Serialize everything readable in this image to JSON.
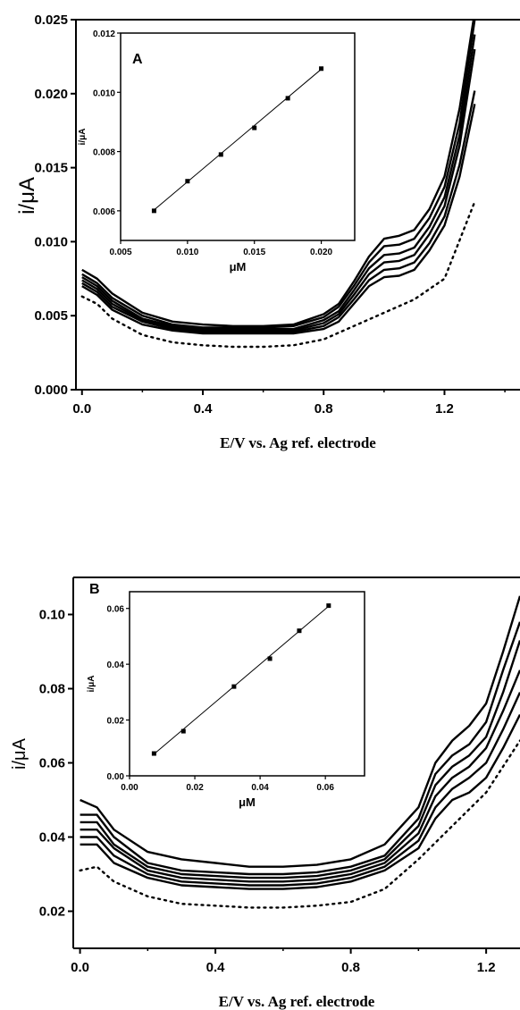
{
  "chart_data": [
    {
      "type": "line",
      "panel": "A",
      "xlabel": "E/V vs. Ag ref. electrode",
      "ylabel": "i/μA",
      "xlim": [
        -0.02,
        1.45
      ],
      "ylim": [
        0.0,
        0.025
      ],
      "xticks": [
        "0.0",
        "0.4",
        "0.8",
        "1.2"
      ],
      "yticks": [
        "0.000",
        "0.005",
        "0.010",
        "0.015",
        "0.020",
        "0.025"
      ],
      "series": [
        {
          "style": "dotted",
          "x": [
            0.0,
            0.05,
            0.1,
            0.2,
            0.3,
            0.4,
            0.5,
            0.6,
            0.7,
            0.8,
            0.9,
            1.0,
            1.1,
            1.2,
            1.3
          ],
          "y": [
            0.0063,
            0.0058,
            0.0048,
            0.0037,
            0.0032,
            0.003,
            0.0029,
            0.0029,
            0.003,
            0.0034,
            0.0043,
            0.0052,
            0.0061,
            0.0075,
            0.0127
          ]
        },
        {
          "style": "solid",
          "x": [
            0.0,
            0.05,
            0.1,
            0.2,
            0.3,
            0.4,
            0.5,
            0.6,
            0.7,
            0.8,
            0.85,
            0.9,
            0.95,
            1.0,
            1.05,
            1.1,
            1.15,
            1.2,
            1.25,
            1.3
          ],
          "y": [
            0.007,
            0.0064,
            0.0054,
            0.0044,
            0.004,
            0.0038,
            0.0038,
            0.0038,
            0.0038,
            0.0041,
            0.0046,
            0.0058,
            0.007,
            0.0076,
            0.0077,
            0.0081,
            0.0094,
            0.0111,
            0.0144,
            0.0193
          ]
        },
        {
          "style": "solid",
          "x": [
            0.0,
            0.05,
            0.1,
            0.2,
            0.3,
            0.4,
            0.5,
            0.6,
            0.7,
            0.8,
            0.85,
            0.9,
            0.95,
            1.0,
            1.05,
            1.1,
            1.15,
            1.2,
            1.25,
            1.3
          ],
          "y": [
            0.0072,
            0.0066,
            0.0056,
            0.0046,
            0.0041,
            0.0039,
            0.0039,
            0.0039,
            0.0039,
            0.0043,
            0.0049,
            0.0061,
            0.0074,
            0.0081,
            0.0082,
            0.0086,
            0.0099,
            0.0117,
            0.0152,
            0.0202
          ]
        },
        {
          "style": "solid",
          "x": [
            0.0,
            0.05,
            0.1,
            0.2,
            0.3,
            0.4,
            0.5,
            0.6,
            0.7,
            0.8,
            0.85,
            0.9,
            0.95,
            1.0,
            1.05,
            1.1,
            1.15,
            1.2,
            1.25,
            1.3
          ],
          "y": [
            0.0074,
            0.0068,
            0.0058,
            0.0047,
            0.0042,
            0.004,
            0.004,
            0.004,
            0.004,
            0.0045,
            0.0051,
            0.0064,
            0.0078,
            0.0086,
            0.0087,
            0.0091,
            0.0105,
            0.0124,
            0.0165,
            0.023
          ]
        },
        {
          "style": "solid",
          "x": [
            0.0,
            0.05,
            0.1,
            0.2,
            0.3,
            0.4,
            0.5,
            0.6,
            0.7,
            0.8,
            0.85,
            0.9,
            0.95,
            1.0,
            1.05,
            1.1,
            1.15,
            1.2,
            1.25,
            1.3
          ],
          "y": [
            0.0076,
            0.007,
            0.006,
            0.0048,
            0.0043,
            0.0041,
            0.0041,
            0.0041,
            0.0041,
            0.0047,
            0.0053,
            0.0067,
            0.0082,
            0.0091,
            0.0092,
            0.0096,
            0.011,
            0.013,
            0.0172,
            0.024
          ]
        },
        {
          "style": "solid",
          "x": [
            0.0,
            0.05,
            0.1,
            0.2,
            0.3,
            0.4,
            0.5,
            0.6,
            0.7,
            0.8,
            0.85,
            0.9,
            0.95,
            1.0,
            1.05,
            1.1,
            1.15,
            1.2,
            1.25,
            1.3
          ],
          "y": [
            0.0078,
            0.0072,
            0.0062,
            0.005,
            0.0044,
            0.0042,
            0.0042,
            0.0042,
            0.0043,
            0.0049,
            0.0056,
            0.007,
            0.0086,
            0.0097,
            0.0098,
            0.0102,
            0.0116,
            0.0137,
            0.018,
            0.025
          ]
        },
        {
          "style": "solid",
          "x": [
            0.0,
            0.05,
            0.1,
            0.2,
            0.3,
            0.4,
            0.5,
            0.6,
            0.7,
            0.8,
            0.85,
            0.9,
            0.95,
            1.0,
            1.05,
            1.1,
            1.15,
            1.2,
            1.25,
            1.3
          ],
          "y": [
            0.0081,
            0.0075,
            0.0065,
            0.0052,
            0.0046,
            0.0044,
            0.0043,
            0.0043,
            0.0044,
            0.0051,
            0.0058,
            0.0073,
            0.009,
            0.0102,
            0.0104,
            0.0108,
            0.0122,
            0.0144,
            0.019,
            0.0255
          ]
        }
      ],
      "inset": {
        "label": "A",
        "type": "scatter",
        "xlabel": "μM",
        "ylabel": "i/μA",
        "xlim": [
          0.005,
          0.0225
        ],
        "ylim": [
          0.005,
          0.012
        ],
        "xticks": [
          "0.005",
          "0.010",
          "0.015",
          "0.020"
        ],
        "yticks": [
          "0.006",
          "0.008",
          "0.010",
          "0.012"
        ],
        "points": {
          "x": [
            0.0075,
            0.01,
            0.0125,
            0.015,
            0.0175,
            0.02
          ],
          "y": [
            0.006,
            0.007,
            0.0079,
            0.0088,
            0.0098,
            0.0108
          ]
        },
        "fit": {
          "x": [
            0.0075,
            0.02
          ],
          "y": [
            0.00603,
            0.01078
          ]
        }
      }
    },
    {
      "type": "line",
      "panel": "B",
      "xlabel": "E/V vs. Ag ref. electrode",
      "ylabel": "i/μA",
      "xlim": [
        -0.02,
        1.3
      ],
      "ylim": [
        0.01,
        0.11
      ],
      "xticks": [
        "0.0",
        "0.4",
        "0.8",
        "1.2"
      ],
      "yticks": [
        "0.02",
        "0.04",
        "0.06",
        "0.08",
        "0.10"
      ],
      "series": [
        {
          "style": "dotted",
          "x": [
            0.0,
            0.05,
            0.1,
            0.2,
            0.3,
            0.4,
            0.5,
            0.6,
            0.7,
            0.8,
            0.9,
            1.0,
            1.1,
            1.2,
            1.3
          ],
          "y": [
            0.031,
            0.032,
            0.028,
            0.024,
            0.022,
            0.0215,
            0.021,
            0.021,
            0.0215,
            0.0225,
            0.026,
            0.034,
            0.043,
            0.052,
            0.066
          ]
        },
        {
          "style": "solid",
          "x": [
            0.0,
            0.05,
            0.1,
            0.2,
            0.3,
            0.4,
            0.5,
            0.6,
            0.7,
            0.8,
            0.9,
            1.0,
            1.05,
            1.1,
            1.15,
            1.2,
            1.25,
            1.3
          ],
          "y": [
            0.038,
            0.038,
            0.033,
            0.029,
            0.027,
            0.0265,
            0.026,
            0.026,
            0.0265,
            0.028,
            0.031,
            0.037,
            0.045,
            0.05,
            0.052,
            0.056,
            0.064,
            0.073
          ]
        },
        {
          "style": "solid",
          "x": [
            0.0,
            0.05,
            0.1,
            0.2,
            0.3,
            0.4,
            0.5,
            0.6,
            0.7,
            0.8,
            0.9,
            1.0,
            1.05,
            1.1,
            1.15,
            1.2,
            1.25,
            1.3
          ],
          "y": [
            0.04,
            0.04,
            0.035,
            0.03,
            0.028,
            0.0275,
            0.027,
            0.027,
            0.0275,
            0.029,
            0.032,
            0.039,
            0.048,
            0.053,
            0.056,
            0.06,
            0.069,
            0.079
          ]
        },
        {
          "style": "solid",
          "x": [
            0.0,
            0.05,
            0.1,
            0.2,
            0.3,
            0.4,
            0.5,
            0.6,
            0.7,
            0.8,
            0.9,
            1.0,
            1.05,
            1.1,
            1.15,
            1.2,
            1.25,
            1.3
          ],
          "y": [
            0.042,
            0.042,
            0.037,
            0.031,
            0.029,
            0.0285,
            0.028,
            0.028,
            0.0285,
            0.03,
            0.033,
            0.041,
            0.051,
            0.056,
            0.059,
            0.064,
            0.074,
            0.085
          ]
        },
        {
          "style": "solid",
          "x": [
            0.0,
            0.05,
            0.1,
            0.2,
            0.3,
            0.4,
            0.5,
            0.6,
            0.7,
            0.8,
            0.9,
            1.0,
            1.05,
            1.1,
            1.15,
            1.2,
            1.25,
            1.3
          ],
          "y": [
            0.044,
            0.044,
            0.038,
            0.032,
            0.03,
            0.0295,
            0.029,
            0.029,
            0.0295,
            0.031,
            0.034,
            0.043,
            0.054,
            0.059,
            0.062,
            0.067,
            0.079,
            0.093
          ]
        },
        {
          "style": "solid",
          "x": [
            0.0,
            0.05,
            0.1,
            0.2,
            0.3,
            0.4,
            0.5,
            0.6,
            0.7,
            0.8,
            0.9,
            1.0,
            1.05,
            1.1,
            1.15,
            1.2,
            1.25,
            1.3
          ],
          "y": [
            0.046,
            0.046,
            0.04,
            0.033,
            0.031,
            0.0305,
            0.03,
            0.03,
            0.0305,
            0.032,
            0.035,
            0.045,
            0.057,
            0.062,
            0.065,
            0.071,
            0.085,
            0.098
          ]
        },
        {
          "style": "solid",
          "x": [
            0.0,
            0.05,
            0.1,
            0.2,
            0.3,
            0.4,
            0.5,
            0.6,
            0.7,
            0.8,
            0.9,
            1.0,
            1.05,
            1.1,
            1.15,
            1.2,
            1.25,
            1.3
          ],
          "y": [
            0.05,
            0.048,
            0.042,
            0.036,
            0.034,
            0.033,
            0.032,
            0.032,
            0.0325,
            0.034,
            0.038,
            0.048,
            0.06,
            0.066,
            0.07,
            0.076,
            0.09,
            0.105
          ]
        }
      ],
      "inset": {
        "label": "B",
        "type": "scatter",
        "xlabel": "μM",
        "ylabel": "i/μA",
        "xlim": [
          0.0,
          0.072
        ],
        "ylim": [
          0.0,
          0.066
        ],
        "xticks": [
          "0.00",
          "0.02",
          "0.04",
          "0.06"
        ],
        "yticks": [
          "0.00",
          "0.02",
          "0.04",
          "0.06"
        ],
        "points": {
          "x": [
            0.0075,
            0.0165,
            0.032,
            0.043,
            0.052,
            0.061
          ],
          "y": [
            0.008,
            0.016,
            0.032,
            0.042,
            0.052,
            0.061
          ]
        },
        "fit": {
          "x": [
            0.0075,
            0.061
          ],
          "y": [
            0.0078,
            0.0608
          ]
        }
      }
    }
  ]
}
